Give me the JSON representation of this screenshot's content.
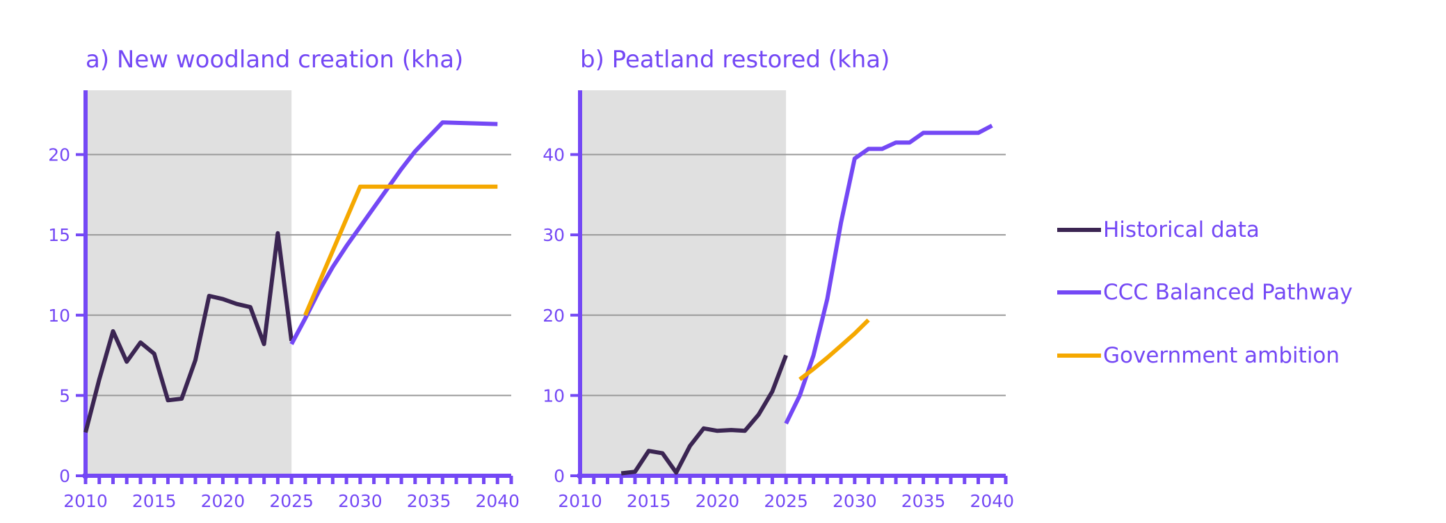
{
  "colors": {
    "historical": "#3b2552",
    "ccc": "#7448f5",
    "gov": "#f5a800",
    "axis": "#7448f5",
    "grid": "#999999",
    "shade": "#e0e0e0",
    "text": "#7448f5"
  },
  "chart_data": [
    {
      "type": "line",
      "title": "a) New woodland creation (kha)",
      "xlim": [
        2010,
        2041
      ],
      "ylim": [
        0,
        24
      ],
      "yticks": [
        0,
        5,
        10,
        15,
        20
      ],
      "xticks": [
        2010,
        2015,
        2020,
        2025,
        2030,
        2035,
        2040
      ],
      "grid": "horizontal",
      "shaded_region": [
        2010,
        2025
      ],
      "series": [
        {
          "name": "Historical data",
          "key": "historical",
          "x": [
            2010,
            2011,
            2012,
            2013,
            2014,
            2015,
            2016,
            2017,
            2018,
            2019,
            2020,
            2021,
            2022,
            2023,
            2024,
            2025
          ],
          "y": [
            2.7,
            6.0,
            9.0,
            7.1,
            8.3,
            7.6,
            4.7,
            4.8,
            7.2,
            11.2,
            11.0,
            10.7,
            10.5,
            8.2,
            15.1,
            8.4
          ]
        },
        {
          "name": "CCC Balanced Pathway",
          "key": "ccc",
          "x": [
            2025,
            2026,
            2027,
            2028,
            2029,
            2030,
            2031,
            2032,
            2033,
            2034,
            2035,
            2036,
            2040
          ],
          "y": [
            8.2,
            9.8,
            11.5,
            13.0,
            14.3,
            15.5,
            16.7,
            17.9,
            19.1,
            20.2,
            21.1,
            22.0,
            21.9
          ]
        },
        {
          "name": "Government ambition",
          "key": "gov",
          "x": [
            2026,
            2030,
            2040
          ],
          "y": [
            10.0,
            18.0,
            18.0
          ]
        }
      ]
    },
    {
      "type": "line",
      "title": "b) Peatland restored (kha)",
      "xlim": [
        2010,
        2041
      ],
      "ylim": [
        0,
        48
      ],
      "yticks": [
        0,
        10,
        20,
        30,
        40
      ],
      "xticks": [
        2010,
        2015,
        2020,
        2025,
        2030,
        2035,
        2040
      ],
      "grid": "horizontal",
      "shaded_region": [
        2010,
        2025
      ],
      "series": [
        {
          "name": "Historical data",
          "key": "historical",
          "x": [
            2013,
            2014,
            2015,
            2016,
            2017,
            2018,
            2019,
            2020,
            2021,
            2022,
            2023,
            2024,
            2025
          ],
          "y": [
            0.3,
            0.5,
            3.1,
            2.8,
            0.4,
            3.7,
            5.9,
            5.6,
            5.7,
            5.6,
            7.6,
            10.5,
            15.0
          ]
        },
        {
          "name": "CCC Balanced Pathway",
          "key": "ccc",
          "x": [
            2025,
            2026,
            2027,
            2028,
            2029,
            2030,
            2031,
            2032,
            2033,
            2034,
            2035,
            2036,
            2037,
            2038,
            2039,
            2040
          ],
          "y": [
            6.5,
            10.0,
            15.0,
            22.0,
            31.5,
            39.5,
            40.7,
            40.7,
            41.5,
            41.5,
            42.7,
            42.7,
            42.7,
            42.7,
            42.7,
            43.6
          ]
        },
        {
          "name": "Government ambition",
          "key": "gov",
          "x": [
            2026,
            2027,
            2028,
            2029,
            2030,
            2031
          ],
          "y": [
            12.0,
            13.3,
            14.7,
            16.2,
            17.7,
            19.4
          ]
        }
      ]
    }
  ],
  "legend": {
    "placement": "right",
    "items": [
      {
        "label": "Historical data",
        "key": "historical"
      },
      {
        "label": "CCC Balanced Pathway",
        "key": "ccc"
      },
      {
        "label": "Government ambition",
        "key": "gov"
      }
    ]
  }
}
